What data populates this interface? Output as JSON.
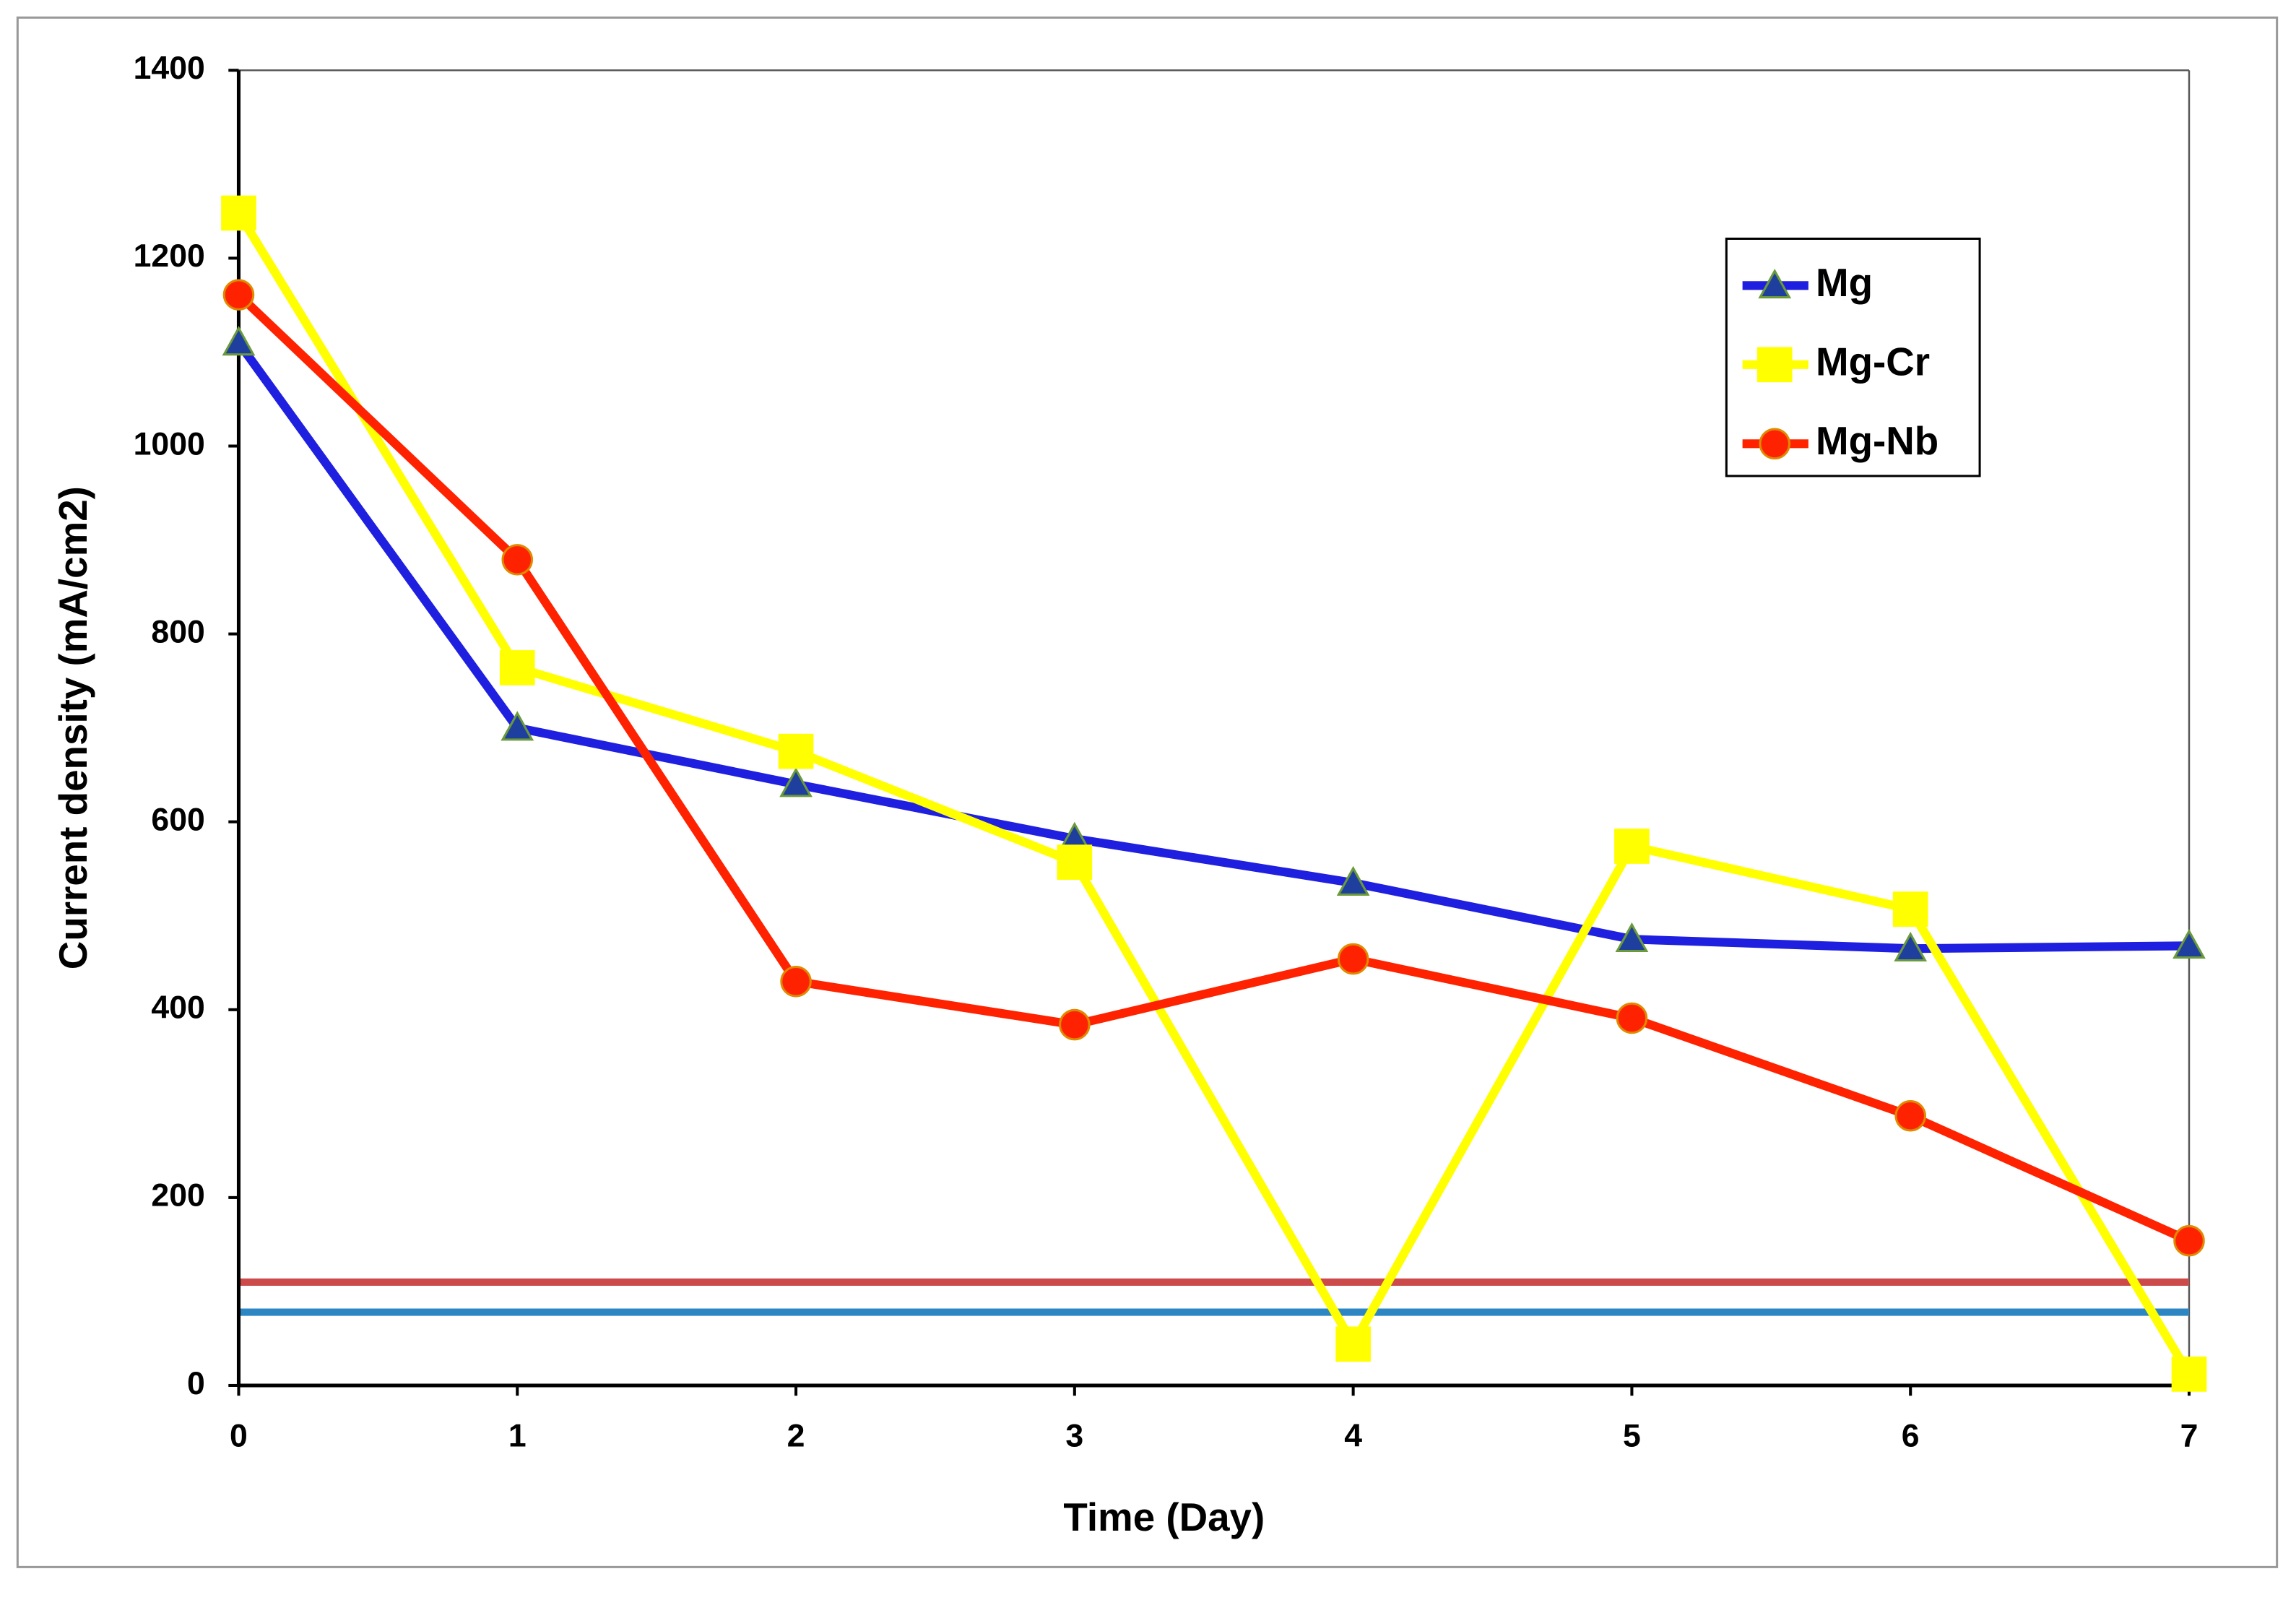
{
  "chart_data": {
    "type": "line",
    "x_label": "Time (Day)",
    "y_label": "Current density  (mA/cm2)",
    "x": [
      0,
      1,
      2,
      3,
      4,
      5,
      6,
      7
    ],
    "xlim": [
      0,
      7
    ],
    "xticks": [
      0,
      1,
      2,
      3,
      4,
      5,
      6,
      7
    ],
    "ylim": [
      0,
      1400
    ],
    "yticks": [
      0,
      200,
      400,
      600,
      800,
      1000,
      1200,
      1400
    ],
    "grid": false,
    "legend": "upper right",
    "series": [
      {
        "name": "Mg",
        "color": "#1f1fe0",
        "marker": "triangle",
        "values": [
          1110,
          700,
          640,
          582,
          535,
          475,
          465,
          468
        ]
      },
      {
        "name": "Mg-Cr",
        "color": "#ffff00",
        "marker": "square",
        "values": [
          1248,
          764,
          675,
          557,
          44,
          574,
          507,
          12
        ]
      },
      {
        "name": "Mg-Nb",
        "color": "#ff2200",
        "marker": "circle",
        "values": [
          1161,
          879,
          430,
          384,
          454,
          391,
          287,
          154
        ]
      }
    ],
    "reference_lines": [
      {
        "value": 110,
        "color": "#cc4a4a"
      },
      {
        "value": 78,
        "color": "#2c86c4"
      }
    ]
  }
}
